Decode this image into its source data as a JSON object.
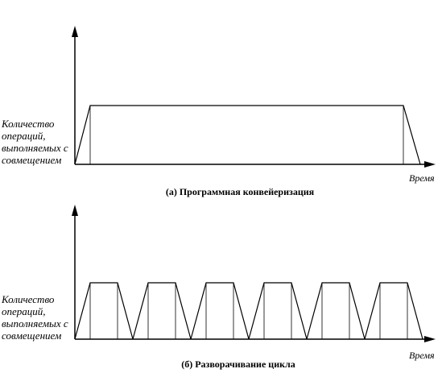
{
  "diagrams": [
    {
      "id": "a",
      "caption": "(а) Программная конвейеризация",
      "y_label_lines": [
        "Количество",
        "операций,",
        "выполняемых с",
        "совмещением"
      ],
      "x_label": "Время"
    },
    {
      "id": "b",
      "caption": "(б) Разворачивание цикла",
      "y_label_lines": [
        "Количество",
        "операций,",
        "выполняемых с",
        "совмещением"
      ],
      "x_label": "Время"
    }
  ],
  "colors": {
    "line": "#000000",
    "background": "#ffffff"
  }
}
